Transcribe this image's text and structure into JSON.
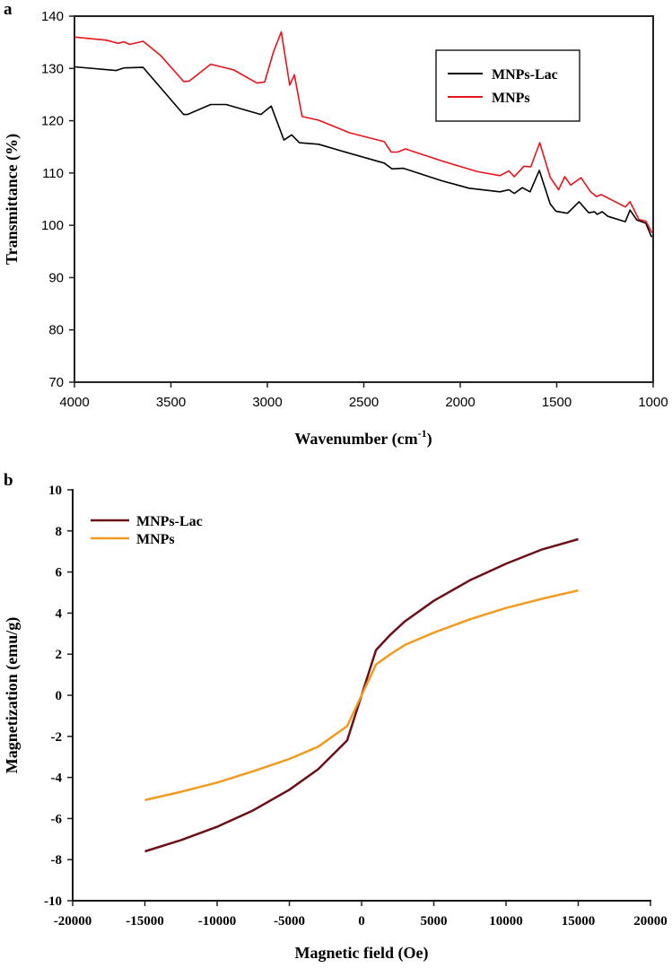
{
  "chart_data": [
    {
      "type": "line",
      "panel_label": "a",
      "title": "",
      "xlabel": "Wavenumber (cm",
      "xlabel_sup": "-1",
      "xlabel_close": ")",
      "ylabel": "Transmittance (%)",
      "xlim": [
        4000,
        1000
      ],
      "ylim": [
        70,
        140
      ],
      "xticks": [
        4000,
        3500,
        3000,
        2500,
        2000,
        1500,
        1000
      ],
      "yticks": [
        70,
        80,
        90,
        100,
        110,
        120,
        130,
        140
      ],
      "grid": false,
      "legend_position": "top-right",
      "series": [
        {
          "name": "MNPs-Lac",
          "color": "#000000",
          "points": [
            [
              4000,
              130.3
            ],
            [
              3784,
              129.6
            ],
            [
              3744,
              130.1
            ],
            [
              3644,
              130.2
            ],
            [
              3434,
              121.2
            ],
            [
              3414,
              121.2
            ],
            [
              3294,
              123.1
            ],
            [
              3214,
              123.1
            ],
            [
              3034,
              121.2
            ],
            [
              2980,
              122.8
            ],
            [
              2914,
              116.3
            ],
            [
              2874,
              117.3
            ],
            [
              2834,
              115.8
            ],
            [
              2734,
              115.5
            ],
            [
              2614,
              114.2
            ],
            [
              2394,
              111.9
            ],
            [
              2354,
              110.8
            ],
            [
              2294,
              110.9
            ],
            [
              2094,
              108.5
            ],
            [
              1954,
              107.1
            ],
            [
              1794,
              106.4
            ],
            [
              1748,
              106.8
            ],
            [
              1720,
              106.1
            ],
            [
              1678,
              107.2
            ],
            [
              1638,
              106.4
            ],
            [
              1590,
              110.5
            ],
            [
              1534,
              104.1
            ],
            [
              1504,
              102.7
            ],
            [
              1444,
              102.3
            ],
            [
              1384,
              104.5
            ],
            [
              1334,
              102.4
            ],
            [
              1304,
              102.6
            ],
            [
              1290,
              102.1
            ],
            [
              1264,
              102.6
            ],
            [
              1234,
              101.7
            ],
            [
              1144,
              100.7
            ],
            [
              1120,
              102.9
            ],
            [
              1084,
              101
            ],
            [
              1038,
              100.4
            ],
            [
              1010,
              97.9
            ],
            [
              1000,
              97.8
            ]
          ]
        },
        {
          "name": "MNPs",
          "color": "#e8131b",
          "points": [
            [
              4000,
              136
            ],
            [
              3834,
              135.4
            ],
            [
              3774,
              134.8
            ],
            [
              3744,
              135.1
            ],
            [
              3714,
              134.6
            ],
            [
              3644,
              135.2
            ],
            [
              3554,
              132.5
            ],
            [
              3434,
              127.5
            ],
            [
              3404,
              127.6
            ],
            [
              3294,
              130.8
            ],
            [
              3174,
              129.7
            ],
            [
              3054,
              127.2
            ],
            [
              3014,
              127.4
            ],
            [
              2968,
              133.2
            ],
            [
              2928,
              137
            ],
            [
              2884,
              126.8
            ],
            [
              2860,
              128.8
            ],
            [
              2820,
              120.8
            ],
            [
              2734,
              120.1
            ],
            [
              2574,
              117.7
            ],
            [
              2394,
              116
            ],
            [
              2358,
              114
            ],
            [
              2324,
              114
            ],
            [
              2284,
              114.6
            ],
            [
              2094,
              112.3
            ],
            [
              1914,
              110.3
            ],
            [
              1794,
              109.5
            ],
            [
              1748,
              110.4
            ],
            [
              1720,
              109.3
            ],
            [
              1670,
              111.3
            ],
            [
              1634,
              111.2
            ],
            [
              1588,
              115.8
            ],
            [
              1534,
              109.2
            ],
            [
              1490,
              106.8
            ],
            [
              1458,
              109.3
            ],
            [
              1428,
              107.7
            ],
            [
              1374,
              109.1
            ],
            [
              1324,
              106.4
            ],
            [
              1294,
              105.5
            ],
            [
              1270,
              105.9
            ],
            [
              1144,
              103.5
            ],
            [
              1120,
              104.5
            ],
            [
              1074,
              101.1
            ],
            [
              1038,
              100.8
            ],
            [
              1008,
              98.7
            ],
            [
              1000,
              98.7
            ]
          ]
        }
      ]
    },
    {
      "type": "line",
      "panel_label": "b",
      "title": "",
      "xlabel": "Magnetic field (Oe)",
      "ylabel": "Magnetization (emu/g)",
      "xlim": [
        -20000,
        20000
      ],
      "ylim": [
        -10,
        10
      ],
      "xticks": [
        -20000,
        -15000,
        -10000,
        -5000,
        0,
        5000,
        10000,
        15000,
        20000
      ],
      "yticks": [
        -10,
        -8,
        -6,
        -4,
        -2,
        0,
        2,
        4,
        6,
        8,
        10
      ],
      "grid": false,
      "legend_position": "top-left",
      "series": [
        {
          "name": "MNPs-Lac",
          "color": "#6b1016",
          "points": [
            [
              -15000,
              -7.6
            ],
            [
              -12500,
              -7.05
            ],
            [
              -10000,
              -6.4
            ],
            [
              -7500,
              -5.6
            ],
            [
              -5000,
              -4.6
            ],
            [
              -3000,
              -3.6
            ],
            [
              -2000,
              -2.9
            ],
            [
              -1000,
              -2.2
            ],
            [
              0,
              0
            ],
            [
              1000,
              2.2
            ],
            [
              2000,
              2.95
            ],
            [
              3000,
              3.6
            ],
            [
              5000,
              4.6
            ],
            [
              7500,
              5.6
            ],
            [
              10000,
              6.4
            ],
            [
              12500,
              7.1
            ],
            [
              15000,
              7.6
            ]
          ]
        },
        {
          "name": "MNPs",
          "color": "#f29a1f",
          "points": [
            [
              -15000,
              -5.1
            ],
            [
              -12500,
              -4.7
            ],
            [
              -10000,
              -4.25
            ],
            [
              -7500,
              -3.7
            ],
            [
              -5000,
              -3.1
            ],
            [
              -3000,
              -2.5
            ],
            [
              -2000,
              -2.0
            ],
            [
              -1000,
              -1.5
            ],
            [
              0,
              0
            ],
            [
              1000,
              1.5
            ],
            [
              2000,
              2.0
            ],
            [
              3000,
              2.45
            ],
            [
              5000,
              3.05
            ],
            [
              7500,
              3.7
            ],
            [
              10000,
              4.25
            ],
            [
              12500,
              4.7
            ],
            [
              15000,
              5.1
            ]
          ]
        }
      ]
    }
  ]
}
